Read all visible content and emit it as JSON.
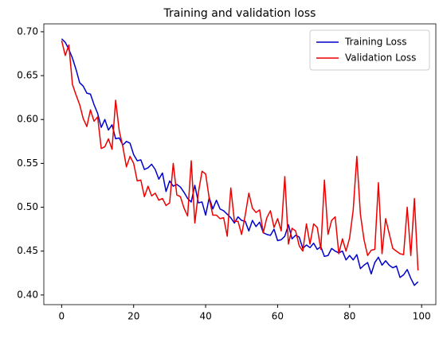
{
  "chart_data": {
    "type": "line",
    "title": "Training and validation loss",
    "x": [
      0,
      1,
      2,
      3,
      4,
      5,
      6,
      7,
      8,
      9,
      10,
      11,
      12,
      13,
      14,
      15,
      16,
      17,
      18,
      19,
      20,
      21,
      22,
      23,
      24,
      25,
      26,
      27,
      28,
      29,
      30,
      31,
      32,
      33,
      34,
      35,
      36,
      37,
      38,
      39,
      40,
      41,
      42,
      43,
      44,
      45,
      46,
      47,
      48,
      49,
      50,
      51,
      52,
      53,
      54,
      55,
      56,
      57,
      58,
      59,
      60,
      61,
      62,
      63,
      64,
      65,
      66,
      67,
      68,
      69,
      70,
      71,
      72,
      73,
      74,
      75,
      76,
      77,
      78,
      79,
      80,
      81,
      82,
      83,
      84,
      85,
      86,
      87,
      88,
      89,
      90,
      91,
      92,
      93,
      94,
      95,
      96,
      97,
      98,
      99
    ],
    "series": [
      {
        "name": "Training Loss",
        "color": "#0000cc",
        "values": [
          0.692,
          0.688,
          0.68,
          0.67,
          0.657,
          0.642,
          0.638,
          0.63,
          0.629,
          0.617,
          0.607,
          0.591,
          0.6,
          0.588,
          0.594,
          0.578,
          0.579,
          0.571,
          0.575,
          0.573,
          0.56,
          0.553,
          0.554,
          0.543,
          0.545,
          0.549,
          0.543,
          0.532,
          0.539,
          0.518,
          0.53,
          0.524,
          0.526,
          0.523,
          0.517,
          0.51,
          0.506,
          0.525,
          0.505,
          0.506,
          0.491,
          0.511,
          0.498,
          0.508,
          0.498,
          0.496,
          0.492,
          0.488,
          0.482,
          0.489,
          0.485,
          0.484,
          0.473,
          0.485,
          0.478,
          0.483,
          0.471,
          0.469,
          0.468,
          0.475,
          0.462,
          0.463,
          0.467,
          0.48,
          0.464,
          0.468,
          0.466,
          0.453,
          0.457,
          0.454,
          0.459,
          0.452,
          0.455,
          0.444,
          0.445,
          0.453,
          0.45,
          0.448,
          0.45,
          0.44,
          0.445,
          0.44,
          0.446,
          0.43,
          0.434,
          0.437,
          0.424,
          0.437,
          0.443,
          0.434,
          0.439,
          0.434,
          0.431,
          0.433,
          0.42,
          0.423,
          0.429,
          0.419,
          0.411,
          0.415
        ]
      },
      {
        "name": "Validation Loss",
        "color": "#ee0000",
        "values": [
          0.69,
          0.673,
          0.685,
          0.64,
          0.628,
          0.617,
          0.601,
          0.592,
          0.611,
          0.598,
          0.603,
          0.567,
          0.569,
          0.578,
          0.566,
          0.622,
          0.587,
          0.569,
          0.546,
          0.558,
          0.55,
          0.53,
          0.531,
          0.512,
          0.524,
          0.513,
          0.516,
          0.508,
          0.51,
          0.502,
          0.505,
          0.55,
          0.514,
          0.512,
          0.499,
          0.49,
          0.553,
          0.482,
          0.517,
          0.541,
          0.538,
          0.51,
          0.491,
          0.491,
          0.487,
          0.488,
          0.467,
          0.522,
          0.484,
          0.484,
          0.469,
          0.491,
          0.516,
          0.499,
          0.494,
          0.497,
          0.471,
          0.488,
          0.496,
          0.477,
          0.487,
          0.473,
          0.535,
          0.458,
          0.476,
          0.473,
          0.456,
          0.45,
          0.481,
          0.458,
          0.481,
          0.477,
          0.452,
          0.531,
          0.469,
          0.485,
          0.489,
          0.447,
          0.464,
          0.45,
          0.465,
          0.497,
          0.558,
          0.492,
          0.463,
          0.445,
          0.451,
          0.452,
          0.528,
          0.447,
          0.487,
          0.47,
          0.453,
          0.45,
          0.447,
          0.446,
          0.5,
          0.445,
          0.51,
          0.428
        ]
      }
    ],
    "xlim": [
      -4.95,
      103.95
    ],
    "ylim": [
      0.389,
      0.709
    ],
    "xticks": [
      0,
      20,
      40,
      60,
      80,
      100
    ],
    "yticks": [
      {
        "value": 0.4,
        "label": "0.40"
      },
      0.45,
      {
        "value": 0.5,
        "label": "0.50"
      },
      0.55,
      {
        "value": 0.6,
        "label": "0.60"
      },
      0.65,
      {
        "value": 0.7,
        "label": "0.70"
      }
    ],
    "legend": "upper right",
    "grid": false
  }
}
